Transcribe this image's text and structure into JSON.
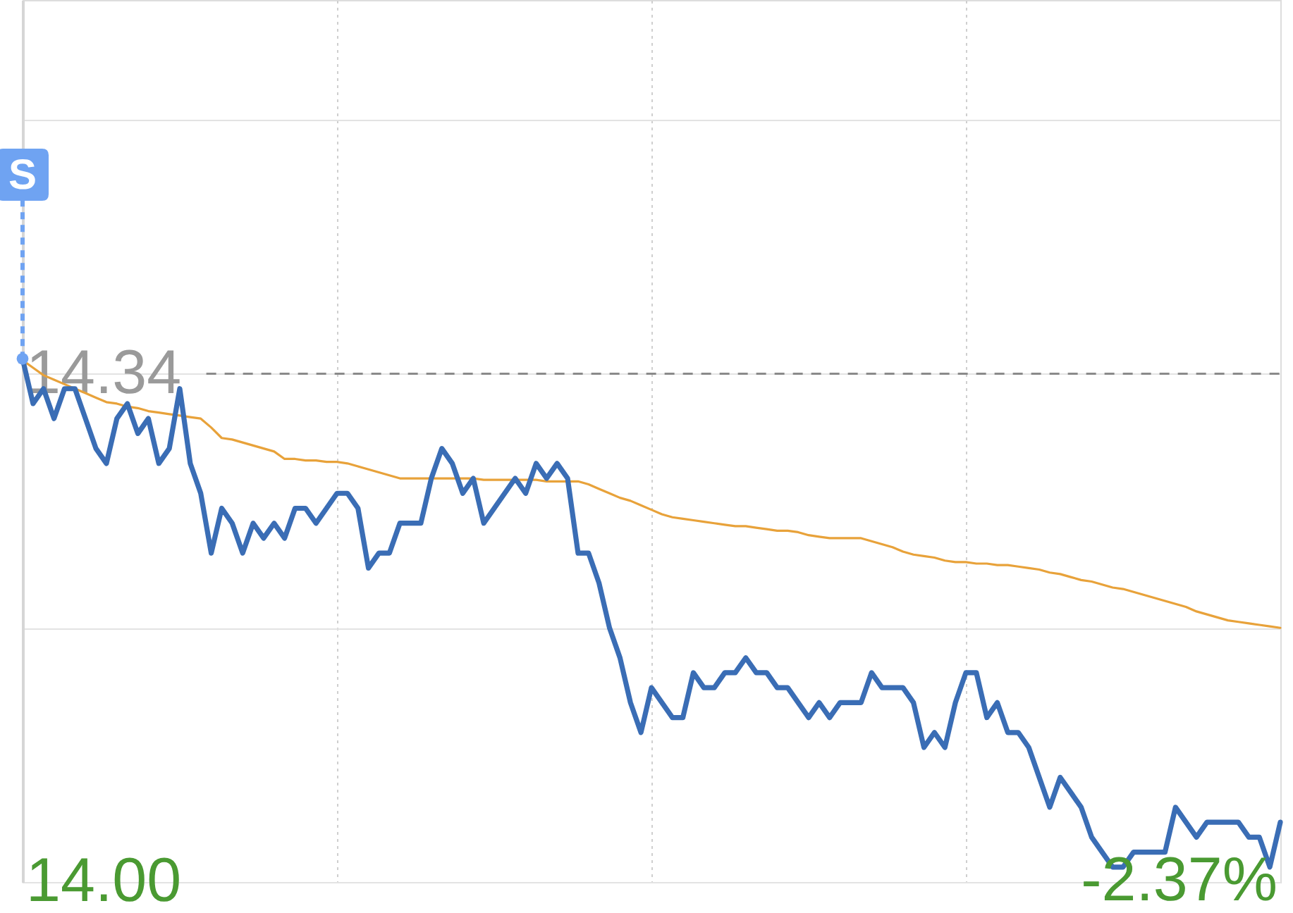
{
  "chart_data": {
    "type": "line",
    "categories": [
      null,
      null,
      null,
      null,
      null,
      null,
      null,
      null,
      null,
      null,
      null,
      null,
      null,
      null,
      null,
      null,
      null,
      null,
      null,
      null,
      null,
      null,
      null,
      null,
      null,
      null,
      null,
      null,
      null,
      null,
      null,
      null,
      null,
      null,
      null,
      null,
      null,
      null,
      null,
      null,
      null,
      null,
      null,
      null,
      null,
      null,
      null,
      null,
      null,
      null,
      null,
      null,
      null,
      null,
      null,
      null,
      null,
      null,
      null,
      null,
      null,
      null,
      null,
      null,
      null,
      null,
      null,
      null,
      null,
      null,
      null,
      null,
      null,
      null,
      null,
      null,
      null,
      null,
      null,
      null,
      null,
      null,
      null,
      null,
      null,
      null,
      null,
      null,
      null,
      null,
      null,
      null,
      null,
      null,
      null,
      null,
      null,
      null,
      null,
      null,
      null,
      null,
      null,
      null,
      null,
      null,
      null,
      null,
      null,
      null,
      null,
      null,
      null,
      null,
      null,
      null,
      null,
      null,
      null,
      null,
      null
    ],
    "ylim": [
      14.0,
      14.59
    ],
    "yticks": [
      {
        "value": 14.0,
        "label": "14.00"
      },
      {
        "value": 14.17,
        "label": null
      },
      {
        "value": 14.34,
        "label": "14.34"
      },
      {
        "value": 14.51,
        "label": null
      }
    ],
    "tick_labels": "y",
    "grid": true,
    "ref_lines": [
      {
        "axis": "y",
        "value": 14.34,
        "color": "#8a8a8a",
        "line_style": "dashed"
      }
    ],
    "annotations": [
      {
        "text": "S",
        "y": 14.35
      },
      "-2.37%"
    ],
    "series": [
      {
        "color": "#e8a23a",
        "values": [
          14.349,
          14.344,
          14.339,
          14.336,
          14.333,
          14.33,
          14.327,
          14.324,
          14.321,
          14.32,
          14.318,
          14.317,
          14.315,
          14.314,
          14.313,
          14.312,
          14.311,
          14.31,
          14.304,
          14.297,
          14.296,
          14.294,
          14.292,
          14.29,
          14.288,
          14.283,
          14.283,
          14.282,
          14.282,
          14.281,
          14.281,
          14.28,
          14.278,
          14.276,
          14.274,
          14.272,
          14.27,
          14.27,
          14.27,
          14.27,
          14.27,
          14.27,
          14.27,
          14.27,
          14.269,
          14.269,
          14.269,
          14.269,
          14.269,
          14.269,
          14.268,
          14.268,
          14.268,
          14.268,
          14.266,
          14.263,
          14.26,
          14.257,
          14.255,
          14.252,
          14.249,
          14.246,
          14.244,
          14.243,
          14.242,
          14.241,
          14.24,
          14.239,
          14.238,
          14.238,
          14.237,
          14.236,
          14.235,
          14.235,
          14.234,
          14.232,
          14.231,
          14.23,
          14.23,
          14.23,
          14.23,
          14.228,
          14.226,
          14.224,
          14.221,
          14.219,
          14.218,
          14.217,
          14.215,
          14.214,
          14.214,
          14.213,
          14.213,
          14.212,
          14.212,
          14.211,
          14.21,
          14.209,
          14.207,
          14.206,
          14.204,
          14.202,
          14.201,
          14.199,
          14.197,
          14.196,
          14.194,
          14.192,
          14.19,
          14.188,
          14.186,
          14.184,
          14.181,
          14.179,
          14.177,
          14.175,
          14.174,
          14.173,
          14.172,
          14.171,
          14.17
        ]
      },
      {
        "color": "#3a6db5",
        "values": [
          14.35,
          14.32,
          14.33,
          14.31,
          14.33,
          14.33,
          14.31,
          14.29,
          14.28,
          14.31,
          14.32,
          14.3,
          14.31,
          14.28,
          14.29,
          14.33,
          14.28,
          14.26,
          14.22,
          14.25,
          14.24,
          14.22,
          14.24,
          14.23,
          14.24,
          14.23,
          14.25,
          14.25,
          14.24,
          14.25,
          14.26,
          14.26,
          14.25,
          14.21,
          14.22,
          14.22,
          14.24,
          14.24,
          14.24,
          14.27,
          14.29,
          14.28,
          14.26,
          14.27,
          14.24,
          14.25,
          14.26,
          14.27,
          14.26,
          14.28,
          14.27,
          14.28,
          14.27,
          14.22,
          14.22,
          14.2,
          14.17,
          14.15,
          14.12,
          14.1,
          14.13,
          14.12,
          14.11,
          14.11,
          14.14,
          14.13,
          14.13,
          14.14,
          14.14,
          14.15,
          14.14,
          14.14,
          14.13,
          14.13,
          14.12,
          14.11,
          14.12,
          14.11,
          14.12,
          14.12,
          14.12,
          14.14,
          14.13,
          14.13,
          14.13,
          14.12,
          14.09,
          14.1,
          14.09,
          14.12,
          14.14,
          14.14,
          14.11,
          14.12,
          14.1,
          14.1,
          14.09,
          14.07,
          14.05,
          14.07,
          14.06,
          14.05,
          14.03,
          14.02,
          14.01,
          14.01,
          14.02,
          14.02,
          14.02,
          14.02,
          14.05,
          14.04,
          14.03,
          14.04,
          14.04,
          14.04,
          14.04,
          14.03,
          14.03,
          14.01,
          14.04
        ]
      }
    ]
  }
}
